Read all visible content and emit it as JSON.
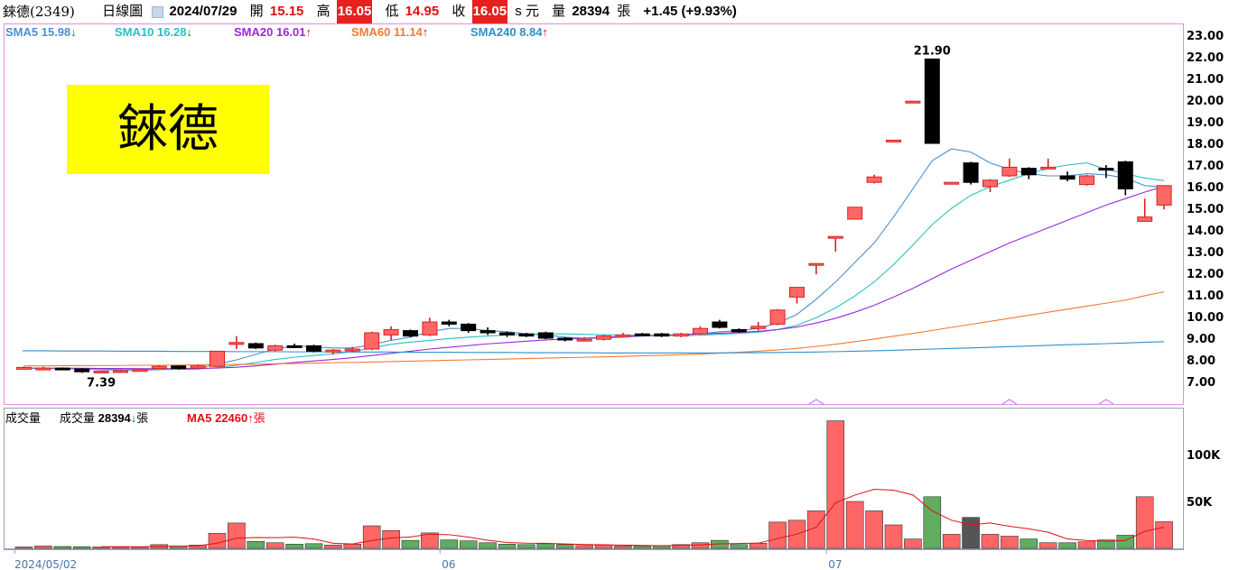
{
  "header": {
    "stock": "錸德(2349)",
    "view": "日線圖",
    "date": "2024/07/29",
    "open_label": "開",
    "open": "15.15",
    "high_label": "高",
    "high": "16.05",
    "low_label": "低",
    "low": "14.95",
    "close_label": "收",
    "close": "16.05",
    "unit_label": "s 元",
    "volume_label": "量",
    "volume": "28394",
    "volume_unit": "張",
    "change": "+1.45 (+9.93%)"
  },
  "stock_name": "錸德",
  "sma_legend": [
    {
      "label": "SMA5",
      "value": "15.98",
      "arrow": "↓",
      "color": "#4c90cf",
      "arrow_color": "#0a8a14"
    },
    {
      "label": "SMA10",
      "value": "16.28",
      "arrow": "↓",
      "color": "#28c0c4",
      "arrow_color": "#0a8a14"
    },
    {
      "label": "SMA20",
      "value": "16.01",
      "arrow": "↑",
      "color": "#9a28d8",
      "arrow_color": "#e01010"
    },
    {
      "label": "SMA60",
      "value": "11.14",
      "arrow": "↑",
      "color": "#f07a34",
      "arrow_color": "#e01010"
    },
    {
      "label": "SMA240",
      "value": "8.84",
      "arrow": "↑",
      "color": "#2f8fcc",
      "arrow_color": "#e01010"
    }
  ],
  "volume_legend": {
    "panel_label": "成交量",
    "vol_label": "成交量",
    "vol_value": "28394",
    "vol_arrow": "↓",
    "vol_unit": "張",
    "ma_label": "MA5",
    "ma_value": "22460",
    "ma_arrow": "↑",
    "ma_unit": "張"
  },
  "chart_data": {
    "type": "candlestick",
    "price_axis": {
      "ylim": [
        6.5,
        23.5
      ],
      "ticks": [
        "7.00",
        "8.00",
        "9.00",
        "10.00",
        "11.00",
        "12.00",
        "13.00",
        "14.00",
        "15.00",
        "16.00",
        "17.00",
        "18.00",
        "19.00",
        "20.00",
        "21.00",
        "22.00",
        "23.00"
      ]
    },
    "volume_axis": {
      "ylim": [
        0,
        140000
      ],
      "ticks": [
        {
          "v": 50000,
          "label": "50K"
        },
        {
          "v": 100000,
          "label": "100K"
        }
      ]
    },
    "x_labels": [
      {
        "i": 0,
        "label": "2024/05/02"
      },
      {
        "i": 22,
        "label": "06"
      },
      {
        "i": 42,
        "label": "07"
      }
    ],
    "annotations": [
      {
        "i": 47,
        "text": "21.90",
        "at": "high"
      },
      {
        "i": 4,
        "text": "7.39",
        "at": "low"
      }
    ],
    "colors": {
      "up": "#ff6666",
      "down": "#000000",
      "vol_up": "#ff6666",
      "vol_down": "#5fae5f",
      "vol_special": "#555555"
    },
    "candles": [
      {
        "o": 7.65,
        "h": 7.7,
        "l": 7.6,
        "c": 7.65,
        "v": 1500
      },
      {
        "o": 7.6,
        "h": 7.68,
        "l": 7.52,
        "c": 7.62,
        "v": 2500
      },
      {
        "o": 7.62,
        "h": 7.65,
        "l": 7.55,
        "c": 7.6,
        "v": 2000
      },
      {
        "o": 7.58,
        "h": 7.62,
        "l": 7.4,
        "c": 7.45,
        "v": 1800
      },
      {
        "o": 7.45,
        "h": 7.5,
        "l": 7.39,
        "c": 7.48,
        "v": 1500
      },
      {
        "o": 7.46,
        "h": 7.55,
        "l": 7.44,
        "c": 7.5,
        "v": 1500
      },
      {
        "o": 7.5,
        "h": 7.58,
        "l": 7.47,
        "c": 7.55,
        "v": 1600
      },
      {
        "o": 7.6,
        "h": 7.75,
        "l": 7.58,
        "c": 7.7,
        "v": 4000
      },
      {
        "o": 7.72,
        "h": 7.75,
        "l": 7.55,
        "c": 7.6,
        "v": 2500
      },
      {
        "o": 7.62,
        "h": 7.78,
        "l": 7.6,
        "c": 7.72,
        "v": 3500
      },
      {
        "o": 7.7,
        "h": 8.4,
        "l": 7.68,
        "c": 8.4,
        "v": 16000
      },
      {
        "o": 8.8,
        "h": 9.1,
        "l": 8.5,
        "c": 8.8,
        "v": 27000
      },
      {
        "o": 8.75,
        "h": 8.8,
        "l": 8.5,
        "c": 8.55,
        "v": 7500
      },
      {
        "o": 8.45,
        "h": 8.7,
        "l": 8.4,
        "c": 8.65,
        "v": 6000
      },
      {
        "o": 8.65,
        "h": 8.75,
        "l": 8.55,
        "c": 8.6,
        "v": 4500
      },
      {
        "o": 8.65,
        "h": 8.7,
        "l": 8.35,
        "c": 8.4,
        "v": 5000
      },
      {
        "o": 8.4,
        "h": 8.5,
        "l": 8.25,
        "c": 8.45,
        "v": 3500
      },
      {
        "o": 8.45,
        "h": 8.6,
        "l": 8.35,
        "c": 8.5,
        "v": 4500
      },
      {
        "o": 8.5,
        "h": 9.3,
        "l": 8.45,
        "c": 9.25,
        "v": 24000
      },
      {
        "o": 9.15,
        "h": 9.55,
        "l": 8.9,
        "c": 9.4,
        "v": 19000
      },
      {
        "o": 9.35,
        "h": 9.4,
        "l": 9.05,
        "c": 9.1,
        "v": 8500
      },
      {
        "o": 9.15,
        "h": 9.95,
        "l": 9.1,
        "c": 9.75,
        "v": 16500
      },
      {
        "o": 9.75,
        "h": 9.85,
        "l": 9.55,
        "c": 9.65,
        "v": 9000
      },
      {
        "o": 9.65,
        "h": 9.7,
        "l": 9.25,
        "c": 9.35,
        "v": 8000
      },
      {
        "o": 9.35,
        "h": 9.5,
        "l": 9.15,
        "c": 9.25,
        "v": 6000
      },
      {
        "o": 9.25,
        "h": 9.3,
        "l": 9.05,
        "c": 9.15,
        "v": 4500
      },
      {
        "o": 9.2,
        "h": 9.25,
        "l": 9.05,
        "c": 9.1,
        "v": 4000
      },
      {
        "o": 9.25,
        "h": 9.3,
        "l": 8.95,
        "c": 9.0,
        "v": 5000
      },
      {
        "o": 9.0,
        "h": 9.05,
        "l": 8.85,
        "c": 8.95,
        "v": 4000
      },
      {
        "o": 8.95,
        "h": 9.05,
        "l": 8.9,
        "c": 8.95,
        "v": 3000
      },
      {
        "o": 8.95,
        "h": 9.15,
        "l": 8.9,
        "c": 9.1,
        "v": 3500
      },
      {
        "o": 9.1,
        "h": 9.25,
        "l": 9.05,
        "c": 9.15,
        "v": 2500
      },
      {
        "o": 9.2,
        "h": 9.25,
        "l": 9.1,
        "c": 9.15,
        "v": 2500
      },
      {
        "o": 9.2,
        "h": 9.25,
        "l": 9.05,
        "c": 9.1,
        "v": 3000
      },
      {
        "o": 9.1,
        "h": 9.25,
        "l": 9.05,
        "c": 9.2,
        "v": 4000
      },
      {
        "o": 9.2,
        "h": 9.55,
        "l": 9.15,
        "c": 9.45,
        "v": 6000
      },
      {
        "o": 9.75,
        "h": 9.85,
        "l": 9.45,
        "c": 9.5,
        "v": 8500
      },
      {
        "o": 9.4,
        "h": 9.45,
        "l": 9.25,
        "c": 9.3,
        "v": 4000
      },
      {
        "o": 9.45,
        "h": 9.75,
        "l": 9.35,
        "c": 9.55,
        "v": 5500
      },
      {
        "o": 9.65,
        "h": 10.35,
        "l": 9.6,
        "c": 10.3,
        "v": 28000
      },
      {
        "o": 10.9,
        "h": 11.35,
        "l": 10.6,
        "c": 11.35,
        "v": 30000
      },
      {
        "o": 12.4,
        "h": 12.45,
        "l": 11.95,
        "c": 12.45,
        "v": 40000
      },
      {
        "o": 13.65,
        "h": 13.7,
        "l": 13.0,
        "c": 13.7,
        "v": 136000
      },
      {
        "o": 14.5,
        "h": 15.05,
        "l": 14.5,
        "c": 15.05,
        "v": 50000
      },
      {
        "o": 16.2,
        "h": 16.55,
        "l": 16.15,
        "c": 16.45,
        "v": 40000
      },
      {
        "o": 18.15,
        "h": 18.15,
        "l": 18.15,
        "c": 18.15,
        "v": 25000
      },
      {
        "o": 19.95,
        "h": 19.95,
        "l": 19.95,
        "c": 19.95,
        "v": 10000
      },
      {
        "o": 21.9,
        "h": 21.9,
        "l": 18.0,
        "c": 18.0,
        "v": 55000
      },
      {
        "o": 16.2,
        "h": 16.2,
        "l": 16.2,
        "c": 16.2,
        "v": 15000
      },
      {
        "o": 17.1,
        "h": 17.15,
        "l": 16.1,
        "c": 16.2,
        "v": 33000
      },
      {
        "o": 16.0,
        "h": 16.35,
        "l": 15.75,
        "c": 16.3,
        "v": 15000
      },
      {
        "o": 16.5,
        "h": 17.3,
        "l": 16.45,
        "c": 16.9,
        "v": 13000
      },
      {
        "o": 16.85,
        "h": 16.9,
        "l": 16.35,
        "c": 16.55,
        "v": 10000
      },
      {
        "o": 16.85,
        "h": 17.3,
        "l": 16.8,
        "c": 16.9,
        "v": 6000
      },
      {
        "o": 16.5,
        "h": 16.7,
        "l": 16.25,
        "c": 16.35,
        "v": 6000
      },
      {
        "o": 16.1,
        "h": 16.55,
        "l": 16.05,
        "c": 16.5,
        "v": 7000
      },
      {
        "o": 16.85,
        "h": 17.0,
        "l": 16.4,
        "c": 16.8,
        "v": 9000
      },
      {
        "o": 17.15,
        "h": 17.2,
        "l": 15.6,
        "c": 15.9,
        "v": 14000
      },
      {
        "o": 14.4,
        "h": 15.45,
        "l": 14.4,
        "c": 14.6,
        "v": 55000
      },
      {
        "o": 15.15,
        "h": 16.05,
        "l": 14.95,
        "c": 16.05,
        "v": 28394
      }
    ],
    "series": [
      {
        "name": "SMA5",
        "color": "#4c90cf",
        "values": [
          7.62,
          7.6,
          7.6,
          7.58,
          7.55,
          7.53,
          7.52,
          7.55,
          7.57,
          7.61,
          7.8,
          8.0,
          8.25,
          8.5,
          8.65,
          8.6,
          8.55,
          8.55,
          8.7,
          8.9,
          9.05,
          9.3,
          9.45,
          9.45,
          9.35,
          9.3,
          9.2,
          9.15,
          9.05,
          9.0,
          9.0,
          9.05,
          9.1,
          9.12,
          9.15,
          9.2,
          9.3,
          9.35,
          9.45,
          9.7,
          10.1,
          10.8,
          11.6,
          12.5,
          13.4,
          14.6,
          15.9,
          17.2,
          17.75,
          17.6,
          17.1,
          16.8,
          16.6,
          16.5,
          16.5,
          16.6,
          16.55,
          16.4,
          16.05,
          15.98
        ]
      },
      {
        "name": "SMA10",
        "color": "#28c0c4",
        "values": [
          7.6,
          7.6,
          7.6,
          7.6,
          7.59,
          7.58,
          7.56,
          7.56,
          7.56,
          7.57,
          7.65,
          7.75,
          7.88,
          8.02,
          8.12,
          8.2,
          8.28,
          8.38,
          8.55,
          8.72,
          8.82,
          8.9,
          8.98,
          9.05,
          9.1,
          9.15,
          9.18,
          9.2,
          9.2,
          9.18,
          9.16,
          9.15,
          9.14,
          9.12,
          9.12,
          9.14,
          9.18,
          9.22,
          9.28,
          9.4,
          9.6,
          9.95,
          10.4,
          10.95,
          11.6,
          12.4,
          13.3,
          14.25,
          15.0,
          15.6,
          16.0,
          16.3,
          16.6,
          16.85,
          17.0,
          17.1,
          16.8,
          16.6,
          16.4,
          16.28
        ]
      },
      {
        "name": "SMA20",
        "color": "#9a28d8",
        "values": [
          7.62,
          7.62,
          7.61,
          7.61,
          7.6,
          7.6,
          7.59,
          7.59,
          7.59,
          7.6,
          7.62,
          7.66,
          7.72,
          7.8,
          7.88,
          7.95,
          8.02,
          8.1,
          8.2,
          8.3,
          8.4,
          8.5,
          8.58,
          8.66,
          8.74,
          8.8,
          8.86,
          8.92,
          8.96,
          9.0,
          9.05,
          9.08,
          9.11,
          9.14,
          9.17,
          9.2,
          9.23,
          9.27,
          9.32,
          9.4,
          9.52,
          9.7,
          9.92,
          10.2,
          10.52,
          10.9,
          11.3,
          11.75,
          12.2,
          12.6,
          13.0,
          13.4,
          13.75,
          14.1,
          14.45,
          14.8,
          15.15,
          15.45,
          15.75,
          16.01
        ]
      },
      {
        "name": "SMA60",
        "color": "#f07a34",
        "values": [
          7.72,
          7.72,
          7.73,
          7.73,
          7.74,
          7.74,
          7.75,
          7.75,
          7.76,
          7.77,
          7.78,
          7.79,
          7.8,
          7.82,
          7.83,
          7.85,
          7.87,
          7.88,
          7.9,
          7.92,
          7.94,
          7.96,
          7.98,
          8.0,
          8.02,
          8.04,
          8.06,
          8.08,
          8.1,
          8.12,
          8.14,
          8.16,
          8.19,
          8.21,
          8.24,
          8.27,
          8.31,
          8.35,
          8.4,
          8.46,
          8.53,
          8.62,
          8.72,
          8.84,
          8.96,
          9.09,
          9.22,
          9.36,
          9.5,
          9.64,
          9.78,
          9.92,
          10.06,
          10.2,
          10.34,
          10.48,
          10.62,
          10.76,
          10.96,
          11.14
        ]
      },
      {
        "name": "SMA240",
        "color": "#2f8fcc",
        "values": [
          8.42,
          8.42,
          8.41,
          8.41,
          8.41,
          8.4,
          8.4,
          8.4,
          8.39,
          8.39,
          8.39,
          8.38,
          8.38,
          8.38,
          8.37,
          8.37,
          8.37,
          8.36,
          8.36,
          8.36,
          8.35,
          8.35,
          8.35,
          8.34,
          8.34,
          8.34,
          8.33,
          8.33,
          8.33,
          8.33,
          8.32,
          8.32,
          8.32,
          8.32,
          8.32,
          8.32,
          8.32,
          8.33,
          8.33,
          8.34,
          8.35,
          8.36,
          8.38,
          8.4,
          8.42,
          8.44,
          8.47,
          8.5,
          8.53,
          8.55,
          8.58,
          8.61,
          8.64,
          8.67,
          8.7,
          8.72,
          8.75,
          8.78,
          8.81,
          8.84
        ]
      }
    ],
    "volume_ma5": {
      "name": "MA5",
      "color": "#e01010",
      "values": [
        null,
        null,
        null,
        null,
        1860,
        1860,
        1680,
        2080,
        2400,
        2620,
        5520,
        10800,
        11500,
        11400,
        11900,
        10000,
        5400,
        4700,
        8300,
        11100,
        12100,
        15200,
        14600,
        12000,
        8700,
        6300,
        5500,
        5400,
        4700,
        4100,
        3900,
        3500,
        3100,
        2900,
        3100,
        3700,
        4800,
        5200,
        5600,
        10400,
        15200,
        22500,
        48500,
        56800,
        63000,
        62000,
        57000,
        40000,
        30000,
        25000,
        27000,
        23600,
        20800,
        17200,
        10000,
        8400,
        7600,
        8400,
        18200,
        22460
      ]
    }
  }
}
